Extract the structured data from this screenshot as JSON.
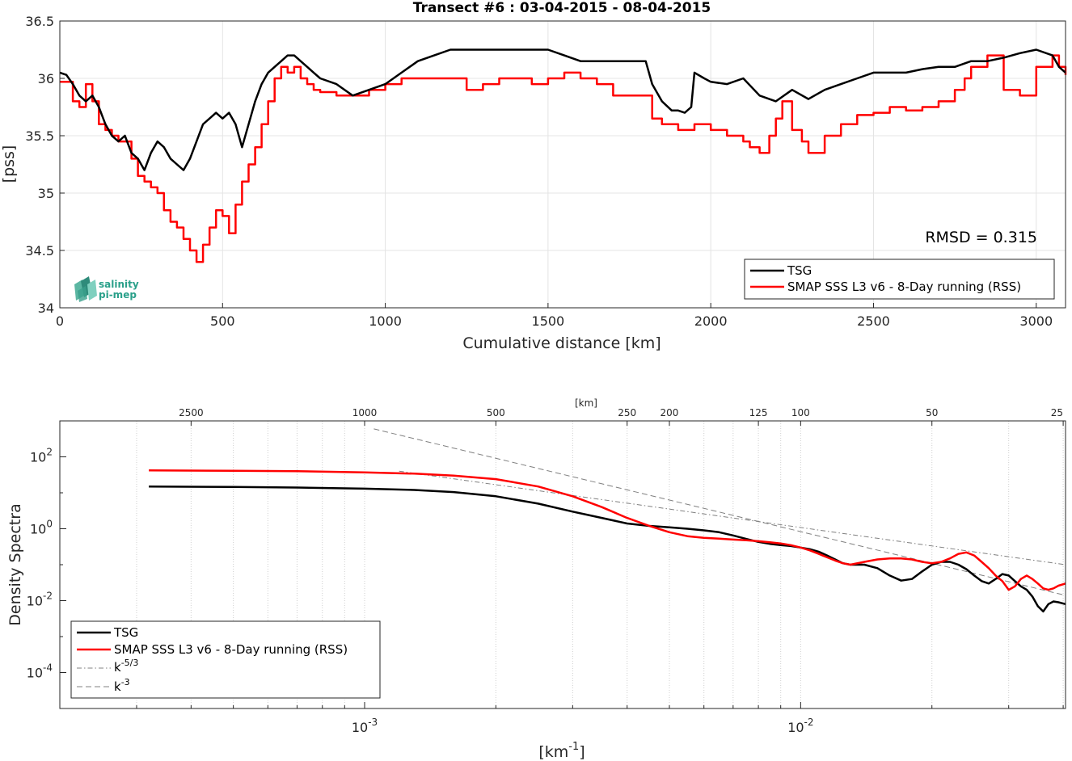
{
  "chart_data": [
    {
      "type": "line",
      "title": "Transect #6 : 03-04-2015 - 08-04-2015",
      "xlabel": "Cumulative distance [km]",
      "ylabel": "[pss]",
      "xlim": [
        0,
        3090
      ],
      "ylim": [
        34,
        36.5
      ],
      "xticks": [
        "0",
        "500",
        "1000",
        "1500",
        "2000",
        "2500",
        "3000"
      ],
      "yticks": [
        "34",
        "34.5",
        "35",
        "35.5",
        "36",
        "36.5"
      ],
      "grid": true,
      "legend_position": "bottom-right",
      "annotation": "RMSD = 0.315",
      "logo_text": [
        "salinity",
        "pi-mep"
      ],
      "series": [
        {
          "name": "TSG",
          "color": "#000000",
          "x": [
            0,
            20,
            40,
            60,
            80,
            100,
            120,
            140,
            160,
            180,
            200,
            220,
            240,
            260,
            280,
            300,
            320,
            340,
            360,
            380,
            400,
            420,
            440,
            460,
            480,
            500,
            520,
            540,
            560,
            580,
            600,
            620,
            640,
            660,
            680,
            700,
            720,
            740,
            760,
            780,
            800,
            850,
            900,
            950,
            1000,
            1050,
            1100,
            1150,
            1200,
            1250,
            1300,
            1350,
            1400,
            1450,
            1500,
            1550,
            1600,
            1650,
            1700,
            1750,
            1800,
            1820,
            1850,
            1880,
            1900,
            1920,
            1940,
            1950,
            1980,
            2000,
            2050,
            2100,
            2150,
            2200,
            2250,
            2300,
            2350,
            2400,
            2450,
            2500,
            2550,
            2600,
            2650,
            2700,
            2750,
            2800,
            2850,
            2900,
            2950,
            3000,
            3050,
            3070,
            3090
          ],
          "y": [
            36.05,
            36.03,
            35.95,
            35.85,
            35.8,
            35.85,
            35.75,
            35.6,
            35.5,
            35.45,
            35.5,
            35.35,
            35.3,
            35.2,
            35.35,
            35.45,
            35.4,
            35.3,
            35.25,
            35.2,
            35.3,
            35.45,
            35.6,
            35.65,
            35.7,
            35.65,
            35.7,
            35.6,
            35.4,
            35.6,
            35.8,
            35.95,
            36.05,
            36.1,
            36.15,
            36.2,
            36.2,
            36.15,
            36.1,
            36.05,
            36.0,
            35.95,
            35.85,
            35.9,
            35.95,
            36.05,
            36.15,
            36.2,
            36.25,
            36.25,
            36.25,
            36.25,
            36.25,
            36.25,
            36.25,
            36.2,
            36.15,
            36.15,
            36.15,
            36.15,
            36.15,
            35.95,
            35.8,
            35.72,
            35.72,
            35.7,
            35.75,
            36.05,
            36.0,
            35.97,
            35.95,
            36.0,
            35.85,
            35.8,
            35.9,
            35.82,
            35.9,
            35.95,
            36.0,
            36.05,
            36.05,
            36.05,
            36.08,
            36.1,
            36.1,
            36.15,
            36.15,
            36.18,
            36.22,
            36.25,
            36.2,
            36.1,
            36.05
          ]
        },
        {
          "name": "SMAP SSS L3 v6 - 8-Day running (RSS)",
          "color": "#ff0000",
          "x": [
            0,
            40,
            60,
            80,
            100,
            120,
            140,
            160,
            180,
            200,
            220,
            240,
            260,
            280,
            300,
            320,
            340,
            360,
            380,
            400,
            420,
            440,
            460,
            480,
            500,
            520,
            540,
            560,
            580,
            600,
            620,
            640,
            660,
            680,
            700,
            720,
            740,
            760,
            780,
            800,
            850,
            900,
            950,
            1000,
            1050,
            1100,
            1150,
            1200,
            1250,
            1300,
            1350,
            1400,
            1450,
            1500,
            1550,
            1600,
            1650,
            1700,
            1750,
            1800,
            1820,
            1850,
            1880,
            1900,
            1950,
            2000,
            2050,
            2100,
            2120,
            2150,
            2180,
            2200,
            2220,
            2250,
            2280,
            2300,
            2350,
            2400,
            2450,
            2500,
            2550,
            2600,
            2650,
            2700,
            2750,
            2780,
            2800,
            2850,
            2900,
            2950,
            3000,
            3050,
            3070,
            3090
          ],
          "y": [
            35.97,
            35.8,
            35.75,
            35.95,
            35.8,
            35.6,
            35.55,
            35.5,
            35.45,
            35.45,
            35.3,
            35.15,
            35.1,
            35.05,
            35.0,
            34.85,
            34.75,
            34.7,
            34.6,
            34.5,
            34.4,
            34.55,
            34.7,
            34.85,
            34.8,
            34.65,
            34.9,
            35.1,
            35.25,
            35.4,
            35.6,
            35.8,
            36.0,
            36.1,
            36.05,
            36.1,
            36.0,
            35.95,
            35.9,
            35.88,
            35.85,
            35.85,
            35.9,
            35.95,
            36.0,
            36.0,
            36.0,
            36.0,
            35.9,
            35.95,
            36.0,
            36.0,
            35.95,
            36.0,
            36.05,
            36.0,
            35.95,
            35.85,
            35.85,
            35.85,
            35.65,
            35.6,
            35.6,
            35.55,
            35.6,
            35.55,
            35.5,
            35.45,
            35.4,
            35.35,
            35.5,
            35.65,
            35.8,
            35.55,
            35.45,
            35.35,
            35.5,
            35.6,
            35.68,
            35.7,
            35.75,
            35.72,
            35.75,
            35.8,
            35.9,
            36.0,
            36.1,
            36.2,
            35.9,
            35.85,
            36.1,
            36.2,
            36.1,
            36.03
          ]
        }
      ]
    },
    {
      "type": "line",
      "xlabel": "[km",
      "xlabel_sup": "-1",
      "xlabel_end": "]",
      "ylabel": "Density Spectra",
      "top_axis_label": "[km]",
      "x_scale": "log",
      "y_scale": "log",
      "xlim": [
        0.0002,
        0.0405
      ],
      "ylim": [
        1e-05,
        1000
      ],
      "xticks": [
        {
          "base": "10",
          "exp": "-3",
          "value": 0.001
        },
        {
          "base": "10",
          "exp": "-2",
          "value": 0.01
        }
      ],
      "yticks": [
        {
          "base": "10",
          "exp": "2",
          "value": 100
        },
        {
          "base": "10",
          "exp": "0",
          "value": 1
        },
        {
          "base": "10",
          "exp": "-2",
          "value": 0.01
        },
        {
          "base": "10",
          "exp": "-4",
          "value": 0.0001
        }
      ],
      "top_ticks": [
        {
          "label": "2500",
          "km": 2500
        },
        {
          "label": "1000",
          "km": 1000
        },
        {
          "label": "500",
          "km": 500
        },
        {
          "label": "250",
          "km": 250
        },
        {
          "label": "200",
          "km": 200
        },
        {
          "label": "125",
          "km": 125
        },
        {
          "label": "100",
          "km": 100
        },
        {
          "label": "50",
          "km": 50
        },
        {
          "label": "25",
          "km": 25
        }
      ],
      "grid": "x-only dotted",
      "legend_position": "bottom-left",
      "series": [
        {
          "name": "TSG",
          "color": "#000000",
          "style": "solid",
          "x": [
            0.00032,
            0.0005,
            0.0007,
            0.001,
            0.0013,
            0.0016,
            0.002,
            0.0025,
            0.003,
            0.0035,
            0.004,
            0.0045,
            0.005,
            0.0055,
            0.006,
            0.0065,
            0.007,
            0.0075,
            0.008,
            0.0085,
            0.009,
            0.0095,
            0.01,
            0.0105,
            0.011,
            0.0115,
            0.012,
            0.0125,
            0.013,
            0.014,
            0.015,
            0.016,
            0.017,
            0.018,
            0.019,
            0.02,
            0.021,
            0.022,
            0.023,
            0.024,
            0.025,
            0.026,
            0.027,
            0.028,
            0.029,
            0.03,
            0.031,
            0.032,
            0.033,
            0.034,
            0.035,
            0.036,
            0.037,
            0.038,
            0.039,
            0.0405
          ],
          "y": [
            15,
            14.5,
            14,
            13,
            12,
            10.5,
            8,
            5,
            3,
            2,
            1.4,
            1.2,
            1.1,
            1.0,
            0.9,
            0.8,
            0.65,
            0.52,
            0.43,
            0.38,
            0.35,
            0.33,
            0.3,
            0.27,
            0.23,
            0.18,
            0.14,
            0.11,
            0.1,
            0.1,
            0.08,
            0.05,
            0.036,
            0.04,
            0.065,
            0.1,
            0.12,
            0.12,
            0.1,
            0.075,
            0.05,
            0.035,
            0.03,
            0.04,
            0.055,
            0.05,
            0.035,
            0.025,
            0.02,
            0.013,
            0.007,
            0.005,
            0.008,
            0.0095,
            0.009,
            0.008
          ]
        },
        {
          "name": "SMAP SSS L3 v6 - 8-Day running (RSS)",
          "color": "#ff0000",
          "style": "solid",
          "x": [
            0.00032,
            0.0005,
            0.0007,
            0.001,
            0.0013,
            0.0016,
            0.002,
            0.0025,
            0.003,
            0.0035,
            0.004,
            0.0045,
            0.005,
            0.0055,
            0.006,
            0.0065,
            0.007,
            0.0075,
            0.008,
            0.0085,
            0.009,
            0.0095,
            0.01,
            0.0105,
            0.011,
            0.0115,
            0.012,
            0.0125,
            0.013,
            0.014,
            0.015,
            0.016,
            0.017,
            0.018,
            0.019,
            0.02,
            0.021,
            0.022,
            0.023,
            0.024,
            0.025,
            0.026,
            0.027,
            0.028,
            0.029,
            0.03,
            0.031,
            0.032,
            0.033,
            0.034,
            0.035,
            0.036,
            0.037,
            0.038,
            0.039,
            0.0405
          ],
          "y": [
            42,
            41,
            40,
            37,
            34,
            30,
            24,
            15,
            8,
            4,
            2,
            1.2,
            0.8,
            0.62,
            0.56,
            0.53,
            0.5,
            0.48,
            0.45,
            0.42,
            0.39,
            0.35,
            0.3,
            0.25,
            0.2,
            0.16,
            0.13,
            0.11,
            0.1,
            0.12,
            0.14,
            0.15,
            0.15,
            0.14,
            0.12,
            0.11,
            0.12,
            0.15,
            0.2,
            0.22,
            0.18,
            0.12,
            0.08,
            0.05,
            0.035,
            0.02,
            0.025,
            0.04,
            0.05,
            0.04,
            0.03,
            0.022,
            0.02,
            0.022,
            0.026,
            0.03
          ]
        },
        {
          "name": "k",
          "name_sup": "-5/3",
          "color": "#808080",
          "style": "dashdot",
          "x": [
            0.0012,
            0.0405
          ],
          "y": [
            40,
            0.1
          ]
        },
        {
          "name": "k",
          "name_sup": "-3",
          "color": "#808080",
          "style": "dashed",
          "x": [
            0.00105,
            0.0405
          ],
          "y": [
            600,
            0.014
          ]
        }
      ]
    }
  ]
}
